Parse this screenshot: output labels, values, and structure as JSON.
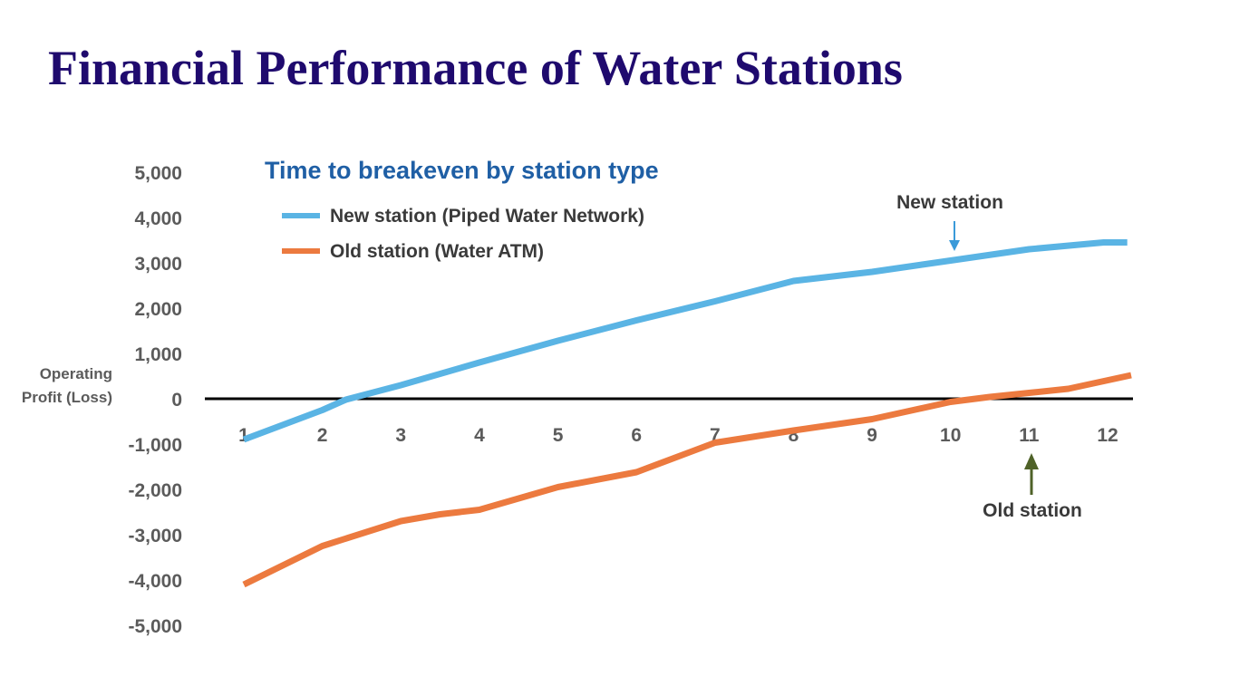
{
  "slide": {
    "title": "Financial Performance of Water Stations"
  },
  "colors": {
    "title": "#1f0a6e",
    "chart_title": "#1f5fa5",
    "new_station": "#5ab4e4",
    "old_station": "#ec7a3f",
    "zero_line": "#000000",
    "new_arrow": "#3a9ad9",
    "old_arrow": "#4f6228"
  },
  "chart_data": {
    "type": "line",
    "title": "Time to breakeven by station type",
    "ylabel_line1": "Operating",
    "ylabel_line2": "Profit (Loss)",
    "xlabel": "",
    "ylim": [
      -5000,
      5000
    ],
    "y_ticks": [
      "5,000",
      "4,000",
      "3,000",
      "2,000",
      "1,000",
      "0",
      "-1,000",
      "-2,000",
      "-3,000",
      "-4,000",
      "-5,000"
    ],
    "categories": [
      "1",
      "2",
      "3",
      "4",
      "5",
      "6",
      "7",
      "8",
      "9",
      "10",
      "11",
      "12"
    ],
    "grid": false,
    "legend_position": "top-left",
    "series": [
      {
        "name": "New station (Piped Water Network)",
        "color": "#5ab4e4",
        "x": [
          1,
          2,
          2.3,
          3,
          4,
          5,
          6,
          7,
          8,
          9,
          10,
          11,
          11.95,
          12.25
        ],
        "values": [
          -900,
          -250,
          -20,
          300,
          800,
          1280,
          1730,
          2150,
          2600,
          2800,
          3050,
          3300,
          3450,
          3450
        ]
      },
      {
        "name": "Old station (Water ATM)",
        "color": "#ec7a3f",
        "x": [
          1,
          2,
          3,
          3.5,
          4,
          5,
          6,
          7,
          8,
          9,
          10,
          10.5,
          11,
          11.5,
          12.3
        ],
        "values": [
          -4100,
          -3250,
          -2700,
          -2550,
          -2450,
          -1950,
          -1620,
          -970,
          -700,
          -450,
          -70,
          40,
          130,
          220,
          520
        ]
      }
    ],
    "annotations": [
      {
        "text": "New station",
        "points_to": "New station (Piped Water Network)",
        "arrow": "down",
        "x": 10,
        "y": 3050
      },
      {
        "text": "Old station",
        "points_to": "Old station (Water ATM)",
        "arrow": "up",
        "x": 11,
        "y": -1000
      }
    ]
  }
}
